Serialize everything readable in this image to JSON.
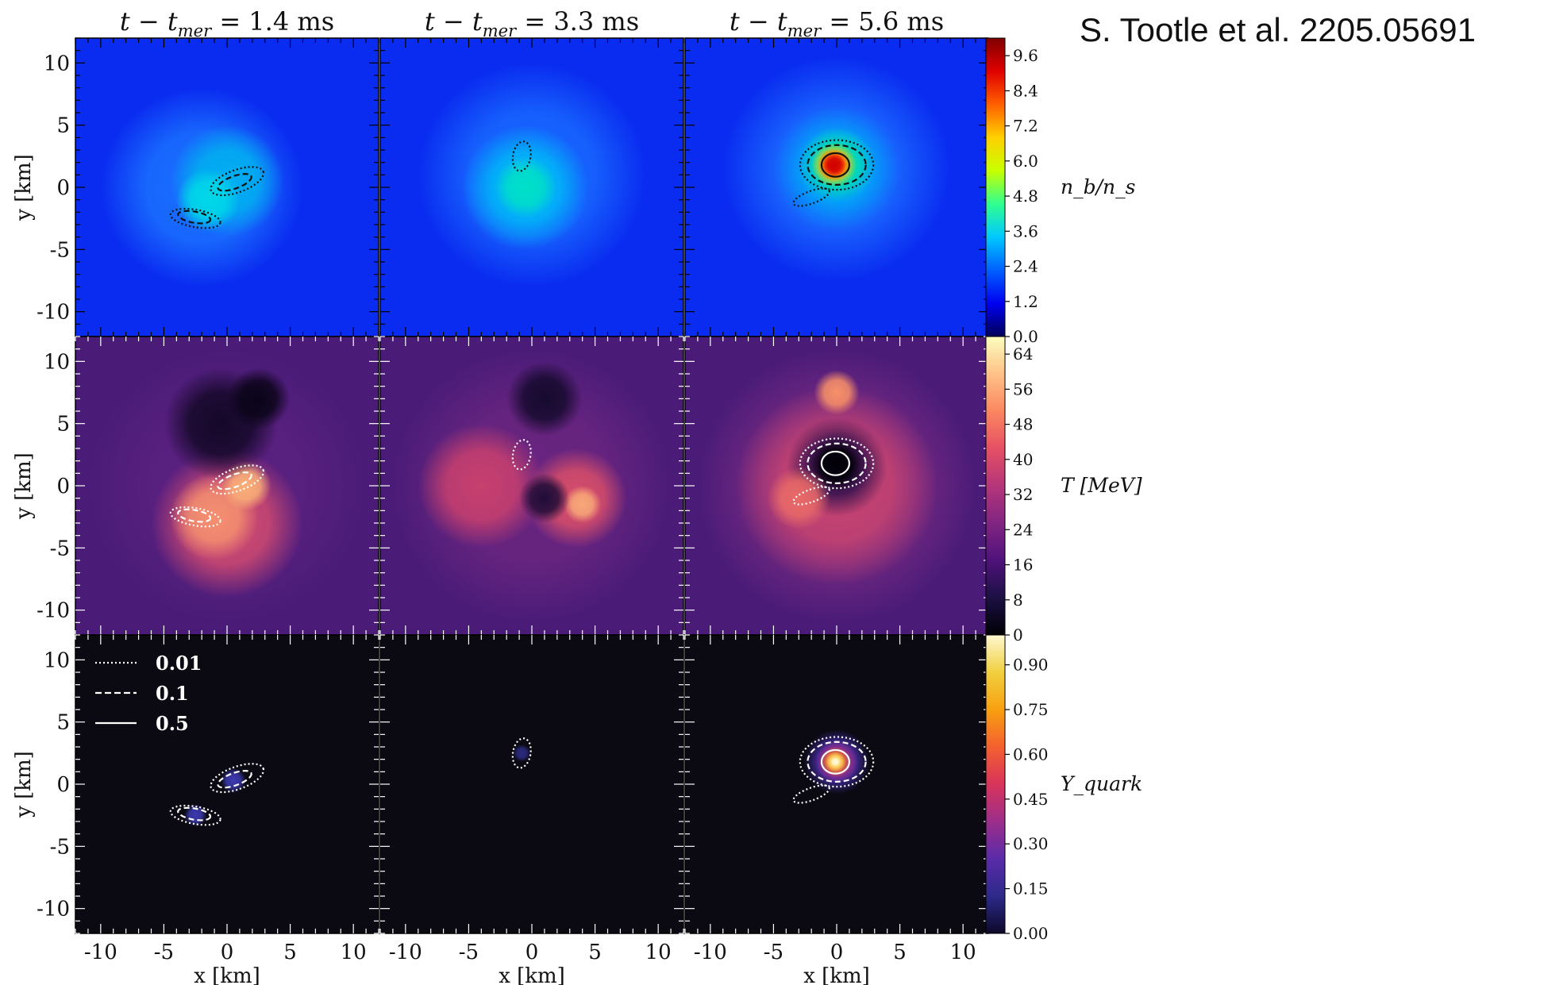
{
  "credit": "S. Tootle et al. 2205.05691",
  "chart_data": {
    "type": "heatmap",
    "columns": [
      {
        "label": "t − t",
        "sub": "mer",
        "rest": " = 1.4 ms",
        "time_ms": 1.4
      },
      {
        "label": "t − t",
        "sub": "mer",
        "rest": " = 3.3 ms",
        "time_ms": 3.3
      },
      {
        "label": "t − t",
        "sub": "mer",
        "rest": " = 5.6 ms",
        "time_ms": 5.6
      }
    ],
    "x_axis": {
      "label": "x [km]",
      "range": [
        -12,
        12
      ],
      "ticks": [
        -10,
        -5,
        0,
        5,
        10
      ]
    },
    "y_axis": {
      "label": "y [km]",
      "range": [
        -12,
        12
      ],
      "ticks": [
        10,
        5,
        0,
        -5,
        -10
      ]
    },
    "rows": [
      {
        "quantity": "density",
        "colorbar_label": "n_b/n_s",
        "colorbar_ticks": [
          "0.0",
          "1.2",
          "2.4",
          "3.6",
          "4.8",
          "6.0",
          "7.2",
          "8.4",
          "9.6"
        ],
        "colorbar_range": [
          0,
          10.2
        ],
        "colormap": [
          "#00005a",
          "#0000f0",
          "#0060ff",
          "#00c8ff",
          "#30ff90",
          "#c8ff00",
          "#ffd000",
          "#ff6000",
          "#e00000",
          "#800000"
        ],
        "background": "#0a2cf0",
        "panels": [
          {
            "blobs": [
              {
                "x": -2,
                "y": 0,
                "r": 8,
                "color": "#1a70ff"
              },
              {
                "x": 0,
                "y": 0.5,
                "r": 4.5,
                "color": "#00b0f0"
              },
              {
                "x": -1.5,
                "y": -1,
                "r": 2.5,
                "color": "#00d8e8"
              }
            ]
          },
          {
            "blobs": [
              {
                "x": 0,
                "y": 1,
                "r": 9,
                "color": "#1868ff"
              },
              {
                "x": -0.5,
                "y": 0,
                "r": 5,
                "color": "#00b8f8"
              },
              {
                "x": -0.5,
                "y": 0,
                "r": 2.5,
                "color": "#00e0c8"
              }
            ]
          },
          {
            "blobs": [
              {
                "x": 0,
                "y": 1.5,
                "r": 9,
                "color": "#1a68ff"
              },
              {
                "x": 0,
                "y": 1.5,
                "r": 5,
                "color": "#00a8f8"
              },
              {
                "x": 0,
                "y": 1.8,
                "r": 3,
                "color": "#00e0b0"
              },
              {
                "x": -0.2,
                "y": 1.8,
                "r": 1.8,
                "color": "#ffd000"
              },
              {
                "x": -0.2,
                "y": 1.8,
                "r": 1.3,
                "color": "#ff4000"
              },
              {
                "x": -0.2,
                "y": 1.8,
                "r": 0.9,
                "color": "#d00000"
              }
            ]
          }
        ]
      },
      {
        "quantity": "temperature",
        "colorbar_label": "T [MeV]",
        "colorbar_ticks": [
          "0",
          "8",
          "16",
          "24",
          "32",
          "40",
          "48",
          "56",
          "64"
        ],
        "colorbar_range": [
          0,
          68
        ],
        "colormap": [
          "#000004",
          "#1c1044",
          "#4f127b",
          "#812581",
          "#b5367a",
          "#e55064",
          "#fb8761",
          "#fec287",
          "#fcfdbf"
        ],
        "background": "#4a1c78",
        "panels": [
          {
            "blobs": [
              {
                "x": 0,
                "y": 0,
                "r": 11,
                "color": "#5a2080"
              },
              {
                "x": 0,
                "y": -3,
                "r": 6,
                "color": "#d04a70"
              },
              {
                "x": -1,
                "y": -2.5,
                "r": 3.5,
                "color": "#f49070"
              },
              {
                "x": 1.5,
                "y": 0,
                "r": 2,
                "color": "#fbb078"
              },
              {
                "x": -0.5,
                "y": 5,
                "r": 4.5,
                "color": "#140828"
              },
              {
                "x": 2.5,
                "y": 7,
                "r": 2.5,
                "color": "#0a0418"
              }
            ]
          },
          {
            "blobs": [
              {
                "x": 0,
                "y": 0,
                "r": 11,
                "color": "#6a2580"
              },
              {
                "x": -4,
                "y": 0,
                "r": 5,
                "color": "#c8406e"
              },
              {
                "x": 3.5,
                "y": -1,
                "r": 4,
                "color": "#d84e6a"
              },
              {
                "x": 4,
                "y": -1.5,
                "r": 1.5,
                "color": "#f8a878"
              },
              {
                "x": 1,
                "y": 7,
                "r": 3,
                "color": "#160a2e"
              },
              {
                "x": 1,
                "y": -1,
                "r": 2,
                "color": "#200c38"
              }
            ]
          },
          {
            "blobs": [
              {
                "x": 0,
                "y": 0,
                "r": 11,
                "color": "#7a2a82"
              },
              {
                "x": 0,
                "y": 0,
                "r": 8,
                "color": "#c84470"
              },
              {
                "x": 0,
                "y": 1.5,
                "r": 4,
                "color": "#30104e"
              },
              {
                "x": 0,
                "y": 1.7,
                "r": 2.2,
                "color": "#000006"
              },
              {
                "x": 0,
                "y": 7.5,
                "r": 1.8,
                "color": "#f89068"
              },
              {
                "x": -3,
                "y": -1,
                "r": 2.5,
                "color": "#e86a68"
              }
            ]
          }
        ]
      },
      {
        "quantity": "quark fraction",
        "colorbar_label": "Y_quark",
        "colorbar_ticks": [
          "0.00",
          "0.15",
          "0.30",
          "0.45",
          "0.60",
          "0.75",
          "0.90"
        ],
        "colorbar_range": [
          0,
          1.0
        ],
        "colormap": [
          "#0d0829",
          "#2d2a8a",
          "#5a2ba8",
          "#9c2e8a",
          "#d8345a",
          "#f46030",
          "#f8a010",
          "#f0d040",
          "#fff7d0"
        ],
        "background": "#0b0a12",
        "panels": [
          {
            "blobs": [
              {
                "x": 0.5,
                "y": 0.3,
                "r": 1.0,
                "color": "#3c3ab0"
              },
              {
                "x": -2.5,
                "y": -2.5,
                "r": 0.9,
                "color": "#3c3ab0"
              }
            ]
          },
          {
            "blobs": [
              {
                "x": -0.8,
                "y": 2.5,
                "r": 0.7,
                "color": "#2a2a80"
              }
            ]
          },
          {
            "blobs": [
              {
                "x": 0,
                "y": 1.8,
                "r": 2.6,
                "color": "#4a2fb0"
              },
              {
                "x": 0,
                "y": 1.8,
                "r": 1.7,
                "color": "#b03080"
              },
              {
                "x": -0.1,
                "y": 1.8,
                "r": 1.2,
                "color": "#f08020"
              },
              {
                "x": -0.1,
                "y": 1.8,
                "r": 0.8,
                "color": "#ffe070"
              },
              {
                "x": -0.1,
                "y": 1.8,
                "r": 0.4,
                "color": "#fff8d8"
              }
            ]
          }
        ]
      }
    ],
    "contour_legend": [
      {
        "style": "dotted",
        "value": "0.01"
      },
      {
        "style": "dashed",
        "value": "0.1"
      },
      {
        "style": "solid",
        "value": "0.5"
      }
    ],
    "contours": [
      [
        {
          "x": 0.8,
          "y": 0.5,
          "rx": 2.2,
          "ry": 0.9,
          "rot": -20,
          "style": "dotted"
        },
        {
          "x": 0.6,
          "y": 0.4,
          "rx": 1.4,
          "ry": 0.5,
          "rot": -20,
          "style": "dashed"
        },
        {
          "x": -2.5,
          "y": -2.5,
          "rx": 2.0,
          "ry": 0.7,
          "rot": 10,
          "style": "dotted"
        },
        {
          "x": -2.6,
          "y": -2.4,
          "rx": 1.3,
          "ry": 0.45,
          "rot": 10,
          "style": "dashed"
        }
      ],
      [
        {
          "x": -0.8,
          "y": 2.5,
          "rx": 0.7,
          "ry": 1.2,
          "rot": 10,
          "style": "dotted"
        }
      ],
      [
        {
          "x": 0,
          "y": 1.8,
          "rx": 2.9,
          "ry": 2.0,
          "rot": 0,
          "style": "dotted"
        },
        {
          "x": 0,
          "y": 1.8,
          "rx": 2.3,
          "ry": 1.6,
          "rot": 0,
          "style": "dashed"
        },
        {
          "x": -0.1,
          "y": 1.8,
          "rx": 1.1,
          "ry": 0.95,
          "rot": 0,
          "style": "solid"
        },
        {
          "x": -2,
          "y": -0.8,
          "rx": 1.5,
          "ry": 0.5,
          "rot": -20,
          "style": "dotted"
        }
      ]
    ]
  }
}
